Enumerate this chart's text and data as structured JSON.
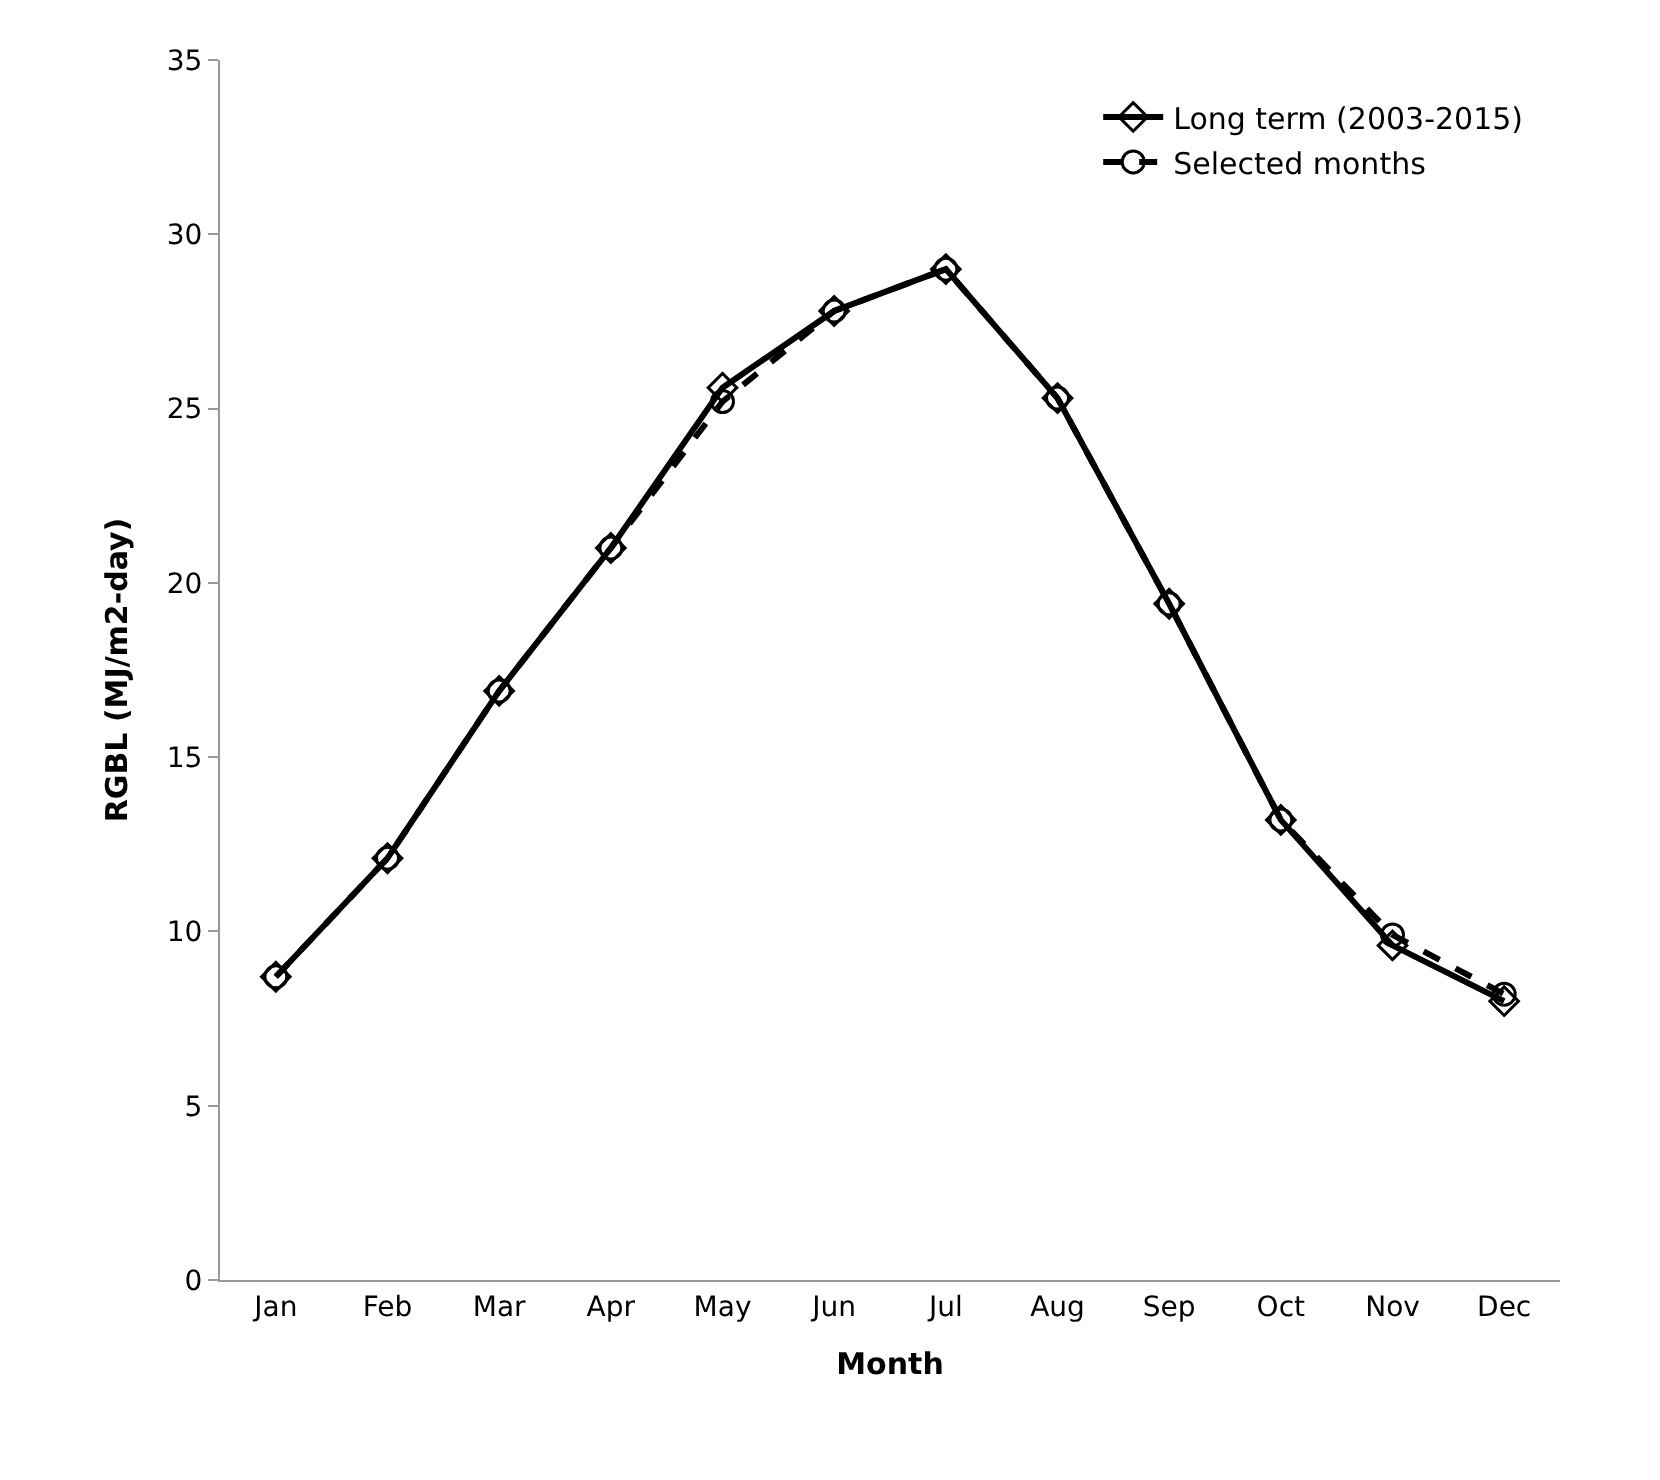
{
  "chart_data": {
    "type": "line",
    "xlabel": "Month",
    "ylabel": "RGBL (MJ/m2-day)",
    "categories": [
      "Jan",
      "Feb",
      "Mar",
      "Apr",
      "May",
      "Jun",
      "Jul",
      "Aug",
      "Sep",
      "Oct",
      "Nov",
      "Dec"
    ],
    "ylim": [
      0,
      35
    ],
    "yticks": [
      0,
      5,
      10,
      15,
      20,
      25,
      30,
      35
    ],
    "legend": "top right",
    "series": [
      {
        "name": "Long term (2003-2015)",
        "color": "#000000",
        "marker": "diamond",
        "line_style": "solid",
        "values": [
          8.7,
          12.1,
          16.9,
          21.0,
          25.6,
          27.8,
          29.0,
          25.3,
          19.4,
          13.2,
          9.6,
          8.0
        ]
      },
      {
        "name": "Selected months",
        "color": "#000000",
        "marker": "circle",
        "line_style": "dashed",
        "values": [
          8.7,
          12.1,
          16.9,
          21.0,
          25.2,
          27.8,
          29.0,
          25.3,
          19.4,
          13.2,
          9.9,
          8.2
        ]
      }
    ]
  }
}
